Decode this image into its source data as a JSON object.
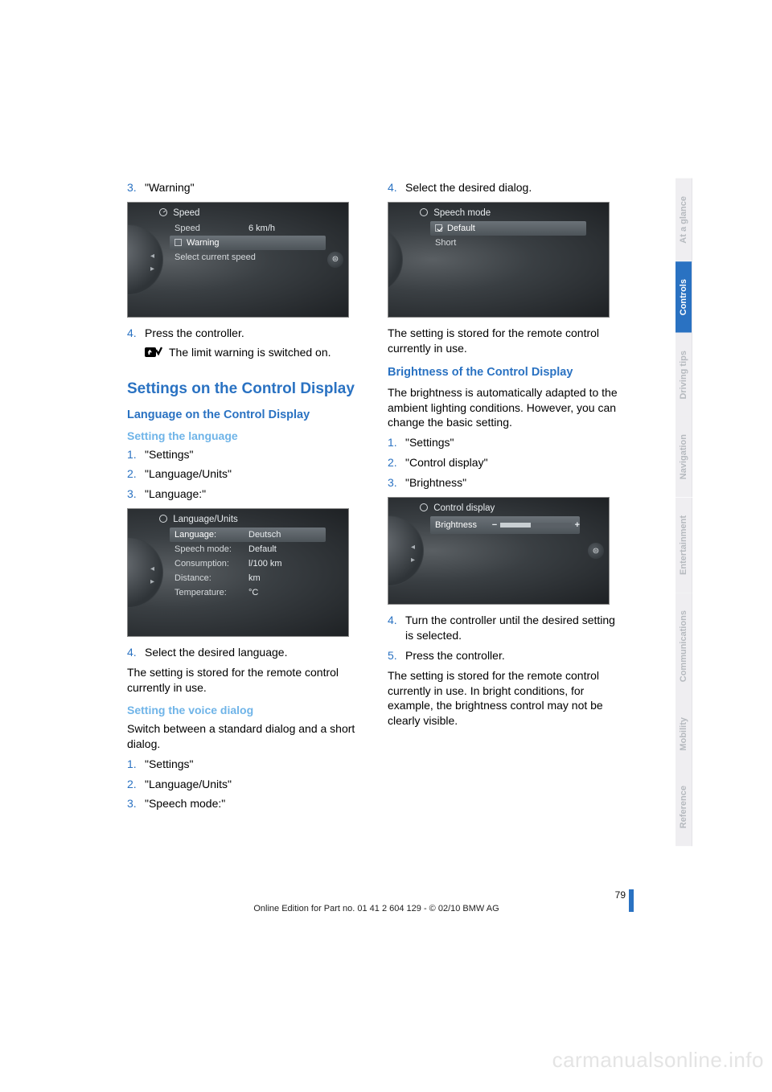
{
  "left": {
    "step3": {
      "num": "3.",
      "txt": "\"Warning\""
    },
    "speedshot": {
      "header": "Speed",
      "speed_lbl": "Speed",
      "speed_val": "6 km/h",
      "warning_lbl": "Warning",
      "select_lbl": "Select current speed"
    },
    "step4a": {
      "num": "4.",
      "txt": "Press the controller."
    },
    "limit_txt": "The limit warning is switched on.",
    "h2": "Settings on the Control Display",
    "h3_lang": "Language on the Control Display",
    "h4_setlang": "Setting the language",
    "lang_steps": [
      {
        "num": "1.",
        "txt": "\"Settings\""
      },
      {
        "num": "2.",
        "txt": "\"Language/Units\""
      },
      {
        "num": "3.",
        "txt": "\"Language:\""
      }
    ],
    "langshot": {
      "header": "Language/Units",
      "rows": [
        {
          "lbl": "Language:",
          "val": "Deutsch",
          "sel": true
        },
        {
          "lbl": "Speech mode:",
          "val": "Default"
        },
        {
          "lbl": "Consumption:",
          "val": "l/100 km"
        },
        {
          "lbl": "Distance:",
          "val": "km"
        },
        {
          "lbl": "Temperature:",
          "val": "°C"
        }
      ]
    },
    "step4b": {
      "num": "4.",
      "txt": "Select the desired language."
    },
    "stored": "The setting is stored for the remote control currently in use.",
    "h4_voice": "Setting the voice dialog",
    "voice_intro": "Switch between a standard dialog and a short dialog.",
    "voice_steps": [
      {
        "num": "1.",
        "txt": "\"Settings\""
      },
      {
        "num": "2.",
        "txt": "\"Language/Units\""
      },
      {
        "num": "3.",
        "txt": "\"Speech mode:\""
      }
    ]
  },
  "right": {
    "step4": {
      "num": "4.",
      "txt": "Select the desired dialog."
    },
    "speechshot": {
      "header": "Speech mode",
      "rows": [
        {
          "lbl": "Default",
          "sel": true,
          "check": true
        },
        {
          "lbl": "Short"
        }
      ]
    },
    "stored1": "The setting is stored for the remote control currently in use.",
    "h3_bright": "Brightness of the Control Display",
    "bright_intro": "The brightness is automatically adapted to the ambient lighting conditions. However, you can change the basic setting.",
    "bright_steps": [
      {
        "num": "1.",
        "txt": "\"Settings\""
      },
      {
        "num": "2.",
        "txt": "\"Control display\""
      },
      {
        "num": "3.",
        "txt": "\"Brightness\""
      }
    ],
    "brightshot": {
      "header": "Control display",
      "row_lbl": "Brightness"
    },
    "step4b": {
      "num": "4.",
      "txt": "Turn the controller until the desired setting is selected."
    },
    "step5": {
      "num": "5.",
      "txt": "Press the controller."
    },
    "stored2": "The setting is stored for the remote control currently in use. In bright conditions, for example, the brightness control may not be clearly visible."
  },
  "tabs": [
    {
      "label": "At a glance",
      "active": false
    },
    {
      "label": "Controls",
      "active": true
    },
    {
      "label": "Driving tips",
      "active": false
    },
    {
      "label": "Navigation",
      "active": false
    },
    {
      "label": "Entertainment",
      "active": false
    },
    {
      "label": "Communications",
      "active": false
    },
    {
      "label": "Mobility",
      "active": false
    },
    {
      "label": "Reference",
      "active": false
    }
  ],
  "footer": {
    "page": "79",
    "line": "Online Edition for Part no. 01 41 2 604 129 - © 02/10 BMW AG"
  },
  "watermark": "carmanualsonline.info"
}
